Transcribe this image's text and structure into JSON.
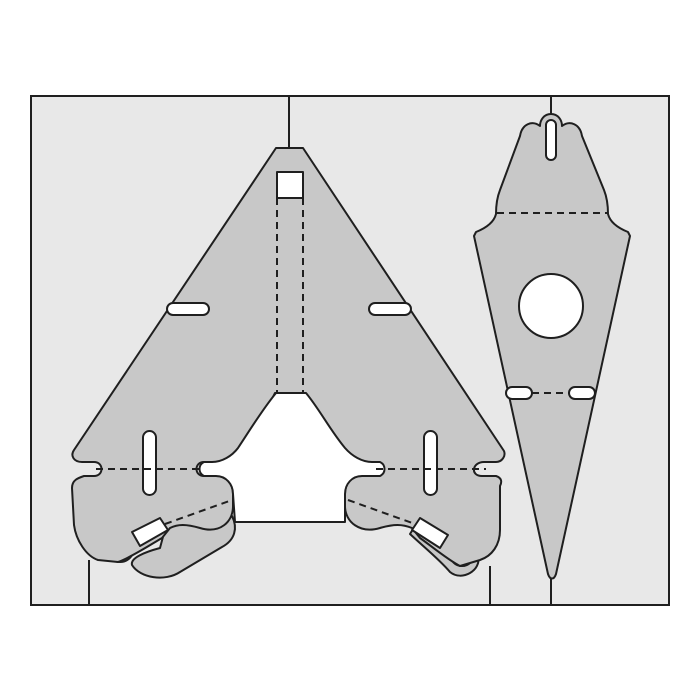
{
  "diagram": {
    "type": "die-cut template",
    "parts": [
      "triangular-piece",
      "diamond-piece"
    ],
    "colors": {
      "background": "#ffffff",
      "sheet": "#e8e8e8",
      "piece": "#c8c8c8",
      "cutout": "#ffffff",
      "stroke": "#1f1f1f"
    },
    "fold_line_style": "dashed",
    "cut_line_style": "solid"
  }
}
